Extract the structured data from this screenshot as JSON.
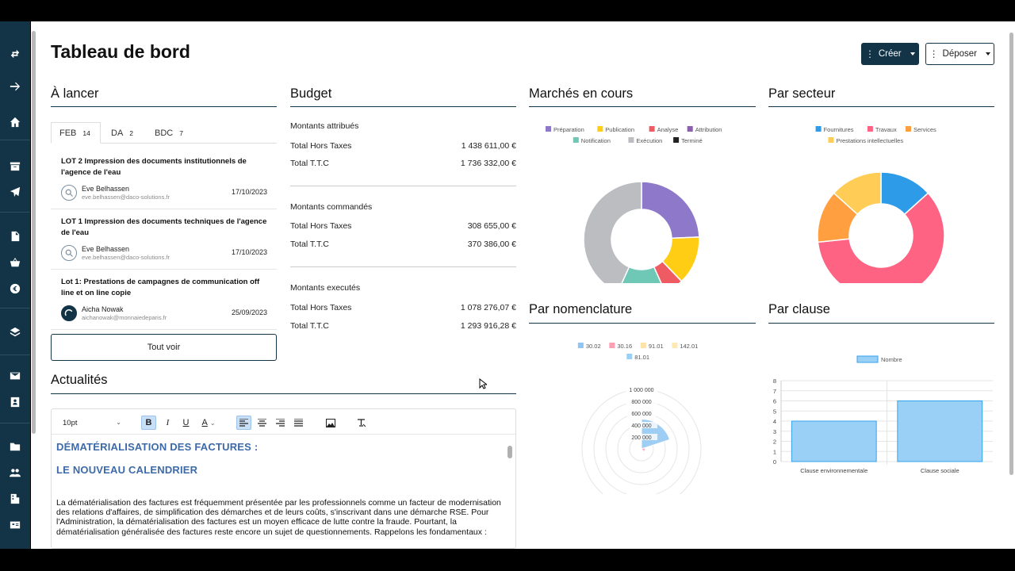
{
  "page": {
    "title": "Tableau de bord"
  },
  "actions": {
    "create_label": "Créer",
    "deposit_label": "Déposer"
  },
  "sections": {
    "to_launch": "À lancer",
    "budget": "Budget",
    "markets": "Marchés en cours",
    "sector": "Par secteur",
    "nomenclature": "Par nomenclature",
    "clause": "Par clause",
    "news": "Actualités"
  },
  "tabs": [
    {
      "label": "FEB",
      "count": "14"
    },
    {
      "label": "DA",
      "count": "2"
    },
    {
      "label": "BDC",
      "count": "7"
    }
  ],
  "lots": [
    {
      "title": "LOT 2 Impression des documents institutionnels de l'agence de l'eau",
      "user": "Eve Belhassen",
      "email": "eve.belhassen@daco-solutions.fr",
      "date": "17/10/2023"
    },
    {
      "title": "LOT 1 Impression des documents techniques de l'agence de l'eau",
      "user": "Eve Belhassen",
      "email": "eve.belhassen@daco-solutions.fr",
      "date": "17/10/2023"
    },
    {
      "title": "Lot 1: Prestations de campagnes de communication off line et on line copie",
      "user": "Aicha Nowak",
      "email": "aichanowak@monnaiedeparis.fr",
      "date": "25/09/2023"
    }
  ],
  "see_all_label": "Tout voir",
  "budget": [
    {
      "heading": "Montants attribués",
      "rows": [
        {
          "label": "Total Hors Taxes",
          "value": "1 438 611,00 €"
        },
        {
          "label": "Total T.T.C",
          "value": "1 736 332,00 €"
        }
      ]
    },
    {
      "heading": "Montants commandés",
      "rows": [
        {
          "label": "Total Hors Taxes",
          "value": "308 655,00 €"
        },
        {
          "label": "Total T.T.C",
          "value": "370 386,00 €"
        }
      ]
    },
    {
      "heading": "Montants executés",
      "rows": [
        {
          "label": "Total Hors Taxes",
          "value": "1 078 276,07 €"
        },
        {
          "label": "Total T.T.C",
          "value": "1 293 916,28 €"
        }
      ]
    }
  ],
  "editor": {
    "font_size": "10pt",
    "heading1": "DÉMATÉRIALISATION DES FACTURES :",
    "heading2": "LE NOUVEAU CALENDRIER",
    "paragraph": "La dématérialisation des factures est fréquemment présentée par les professionnels comme un facteur de modernisation des relations d'affaires, de simplification des démarches et de leurs coûts, s'inscrivant dans une démarche RSE. Pour l'Administration, la dématérialisation des factures est un moyen efficace de lutte contre la fraude. Pourtant, la dématérialisation généralisée des factures reste encore un sujet de questionnements. Rappelons les fondamentaux :"
  },
  "colors": {
    "sidebar": "#133447",
    "accent": "#133447"
  },
  "chart_data": [
    {
      "type": "pie",
      "title": "Marchés en cours",
      "series": [
        {
          "name": "Préparation",
          "value": 9,
          "color": "#8e78c9"
        },
        {
          "name": "Publication",
          "value": 5,
          "color": "#ffcd14"
        },
        {
          "name": "Analyse",
          "value": 2,
          "color": "#ef5b63"
        },
        {
          "name": "Attribution",
          "value": 0,
          "color": "#8e5fb0"
        },
        {
          "name": "Notification",
          "value": 5,
          "color": "#6fc7b5"
        },
        {
          "name": "Exécution",
          "value": 16,
          "color": "#bcbdc1"
        },
        {
          "name": "Terminé",
          "value": 0,
          "color": "#222222"
        }
      ]
    },
    {
      "type": "pie",
      "title": "Par secteur",
      "series": [
        {
          "name": "Fournitures",
          "value": 2,
          "color": "#2e9be8"
        },
        {
          "name": "Travaux",
          "value": 9,
          "color": "#ff6384"
        },
        {
          "name": "Services",
          "value": 2,
          "color": "#ff9f40"
        },
        {
          "name": "Prestations intellectuelles",
          "value": 2,
          "color": "#ffcd56"
        }
      ]
    },
    {
      "type": "polar",
      "title": "Par nomenclature",
      "series": [
        {
          "name": "30.02",
          "value": 500000,
          "color": "#8ec5f2"
        },
        {
          "name": "30.16",
          "value": 60000,
          "color": "#ff9fb3"
        },
        {
          "name": "91.01",
          "value": 0,
          "color": "#ffe2a8"
        },
        {
          "name": "142.01",
          "value": 0,
          "color": "#ffe9b3"
        },
        {
          "name": "81.01",
          "value": 0,
          "color": "#9ad0f5"
        }
      ],
      "ticks": [
        "1 000 000",
        "800 000",
        "600 000",
        "400 000",
        "200 000"
      ],
      "max": 1000000
    },
    {
      "type": "bar",
      "title": "Par clause",
      "categories": [
        "Clause environnementale",
        "Clause sociale"
      ],
      "series": [
        {
          "name": "Nombre",
          "values": [
            4,
            6
          ]
        }
      ],
      "ylim": [
        0,
        8
      ],
      "yticks": [
        "0",
        "1",
        "2",
        "3",
        "4",
        "5",
        "6",
        "7",
        "8"
      ]
    }
  ]
}
